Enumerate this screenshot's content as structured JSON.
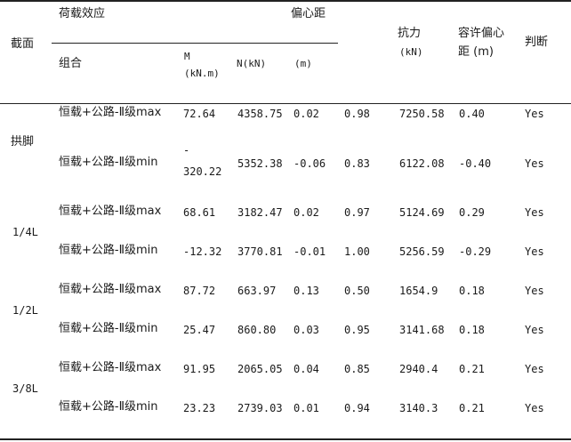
{
  "header": {
    "section": "截面",
    "load_effect": "荷载效应",
    "combination": "组合",
    "m_unit_line1": "M",
    "m_unit_line2": "(kN.m)",
    "n_unit": "N(kN)",
    "eccentricity": "偏心距",
    "ecc_unit": "(m)",
    "resistance": "抗力",
    "resistance_unit": "(kN)",
    "allow_ecc_line1": "容许偏心",
    "allow_ecc_line2": "距 (m)",
    "judgement": "判断"
  },
  "sections": [
    {
      "name": "拱脚"
    },
    {
      "name": "1/4L"
    },
    {
      "name": "1/2L"
    },
    {
      "name": "3/8L"
    }
  ],
  "rows": [
    {
      "combo": "恒载+公路-Ⅱ级max",
      "m": "72.64",
      "n": "4358.75",
      "e": "0.02",
      "ratio": "0.98",
      "r": "7250.58",
      "ae": "0.40",
      "ok": "Yes"
    },
    {
      "combo": "恒载+公路-Ⅱ级min",
      "m_line1": "-",
      "m": "320.22",
      "n": "5352.38",
      "e": "-0.06",
      "ratio": "0.83",
      "r": "6122.08",
      "ae": "-0.40",
      "ok": "Yes"
    },
    {
      "combo": "恒载+公路-Ⅱ级max",
      "m": "68.61",
      "n": "3182.47",
      "e": "0.02",
      "ratio": "0.97",
      "r": "5124.69",
      "ae": "0.29",
      "ok": "Yes"
    },
    {
      "combo": "恒载+公路-Ⅱ级min",
      "m": "-12.32",
      "n": "3770.81",
      "e": "-0.01",
      "ratio": "1.00",
      "r": "5256.59",
      "ae": "-0.29",
      "ok": "Yes"
    },
    {
      "combo": "恒载+公路-Ⅱ级max",
      "m": "87.72",
      "n": "663.97",
      "e": "0.13",
      "ratio": "0.50",
      "r": "1654.9",
      "ae": "0.18",
      "ok": "Yes"
    },
    {
      "combo": "恒载+公路-Ⅱ级min",
      "m": "25.47",
      "n": "860.80",
      "e": "0.03",
      "ratio": "0.95",
      "r": "3141.68",
      "ae": "0.18",
      "ok": "Yes"
    },
    {
      "combo": "恒载+公路-Ⅱ级max",
      "m": "91.95",
      "n": "2065.05",
      "e": "0.04",
      "ratio": "0.85",
      "r": "2940.4",
      "ae": "0.21",
      "ok": "Yes"
    },
    {
      "combo": "恒载+公路-Ⅱ级min",
      "m": "23.23",
      "n": "2739.03",
      "e": "0.01",
      "ratio": "0.94",
      "r": "3140.3",
      "ae": "0.21",
      "ok": "Yes"
    }
  ]
}
